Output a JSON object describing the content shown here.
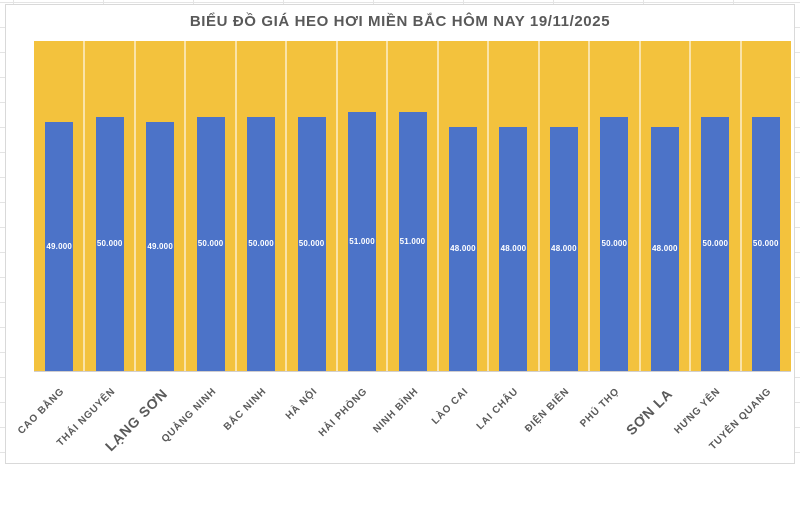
{
  "chart_data": {
    "type": "bar",
    "title": "BIỂU ĐỒ GIÁ HEO HƠI MIỀN BẮC HÔM NAY 19/11/2025",
    "categories": [
      "CAO BẰNG",
      "THÁI NGUYÊN",
      "LẠNG SƠN",
      "QUẢNG NINH",
      "BẮC NINH",
      "HÀ NỘI",
      "HẢI PHÒNG",
      "NINH BÌNH",
      "LÀO CAI",
      "LAI CHÂU",
      "ĐIỆN BIÊN",
      "PHÚ THỌ",
      "SƠN LA",
      "HƯNG YÊN",
      "TUYÊN QUANG"
    ],
    "values": [
      49000,
      50000,
      49000,
      50000,
      50000,
      50000,
      51000,
      51000,
      48000,
      48000,
      48000,
      50000,
      48000,
      50000,
      50000
    ],
    "value_labels": [
      "49.000",
      "50.000",
      "49.000",
      "50.000",
      "50.000",
      "50.000",
      "51.000",
      "51.000",
      "48.000",
      "48.000",
      "48.000",
      "50.000",
      "48.000",
      "50.000",
      "50.000"
    ],
    "emphasized_categories": [
      "LẠNG SƠN",
      "SƠN LA"
    ],
    "xlabel": "",
    "ylabel": "",
    "ylim": [
      0,
      65000
    ],
    "legend": "none",
    "grid": "vertical-category-separators",
    "colors": {
      "plot_background": "#F3C23D",
      "bar": "#4C73C8",
      "title_text": "#595959",
      "category_text": "#595959",
      "value_label_text": "#FFFFFF",
      "gridline": "rgba(255,255,255,0.55)",
      "axis_line": "#D1CECE",
      "chart_border": "#D9D9D9",
      "spreadsheet_line": "#E4E4E4"
    }
  }
}
